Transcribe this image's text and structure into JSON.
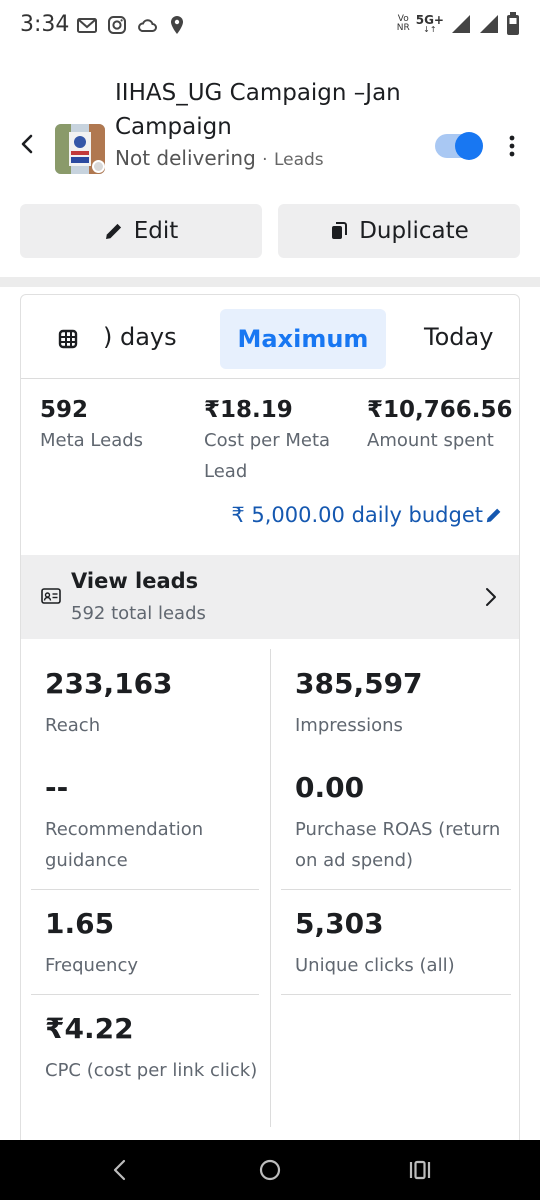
{
  "status_bar": {
    "time": "3:34",
    "volte_top": "Vo",
    "volte_bottom": "NR",
    "network": "5G+",
    "icons": [
      "gmail-icon",
      "instagram-icon",
      "cloud-icon",
      "location-icon",
      "signal-icon",
      "battery-icon"
    ]
  },
  "header": {
    "title": "IIHAS_UG Campaign –Jan Campaign",
    "status": "Not delivering",
    "separator": "·",
    "objective": "Leads",
    "toggle_on": true,
    "accent": "#1877f2"
  },
  "actions": {
    "edit_label": "Edit",
    "duplicate_label": "Duplicate"
  },
  "date_range": {
    "partial_label": ") days",
    "selected_label": "Maximum",
    "today_label": "Today"
  },
  "kpis": [
    {
      "value": "592",
      "label": "Meta Leads"
    },
    {
      "value": "₹18.19",
      "label": "Cost per Meta Lead"
    },
    {
      "value": "₹10,766.56",
      "label": "Amount spent"
    }
  ],
  "budget": {
    "text": "₹ 5,000.00 daily budget",
    "color": "#1558b0"
  },
  "view_leads": {
    "title": "View leads",
    "subtitle": "592 total leads"
  },
  "metrics": [
    {
      "value": "233,163",
      "label": "Reach"
    },
    {
      "value": "385,597",
      "label": "Impressions"
    },
    {
      "value": "--",
      "label": "Recommendation guidance"
    },
    {
      "value": "0.00",
      "label": "Purchase ROAS (return on ad spend)"
    },
    {
      "value": "1.65",
      "label": "Frequency"
    },
    {
      "value": "5,303",
      "label": "Unique clicks (all)"
    },
    {
      "value": "₹4.22",
      "label": "CPC (cost per link click)"
    }
  ]
}
